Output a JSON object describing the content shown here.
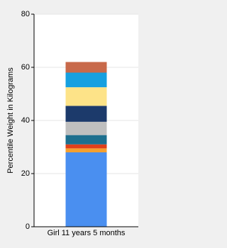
{
  "chart_data": {
    "type": "stacked-bar",
    "y_label": "Percentile Weight in Kilograms",
    "categories": [
      "Girl 11 years 5 months"
    ],
    "series": [
      {
        "color": "#4a8ff0",
        "values": [
          28
        ]
      },
      {
        "color": "#f5a030",
        "values": [
          1.5
        ]
      },
      {
        "color": "#e0401a",
        "values": [
          1.5
        ]
      },
      {
        "color": "#1d6f8e",
        "values": [
          3.5
        ]
      },
      {
        "color": "#bfbfbf",
        "values": [
          5
        ]
      },
      {
        "color": "#1c3a6b",
        "values": [
          6
        ]
      },
      {
        "color": "#fde388",
        "values": [
          7
        ]
      },
      {
        "color": "#16a0e0",
        "values": [
          5.5
        ]
      },
      {
        "color": "#c8694a",
        "values": [
          4
        ]
      }
    ],
    "ylim": [
      0,
      80
    ],
    "yticks": [
      0,
      20,
      40,
      60,
      80
    ],
    "grid": true
  }
}
